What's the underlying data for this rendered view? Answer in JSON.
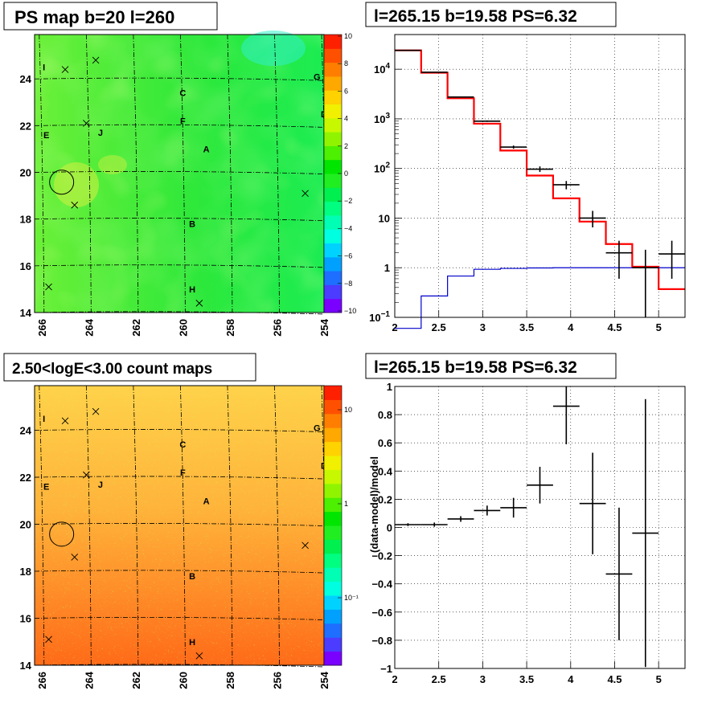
{
  "panels": {
    "ps_map_title": "PS map b=20 l=260",
    "count_map_title": "2.50<logE<3.00 count maps",
    "spectrum_title": "l=265.15 b=19.58 PS=6.32",
    "residual_title": "l=265.15 b=19.58 PS=6.32"
  },
  "map_axes": {
    "x_ticks": [
      "266",
      "264",
      "262",
      "260",
      "258",
      "256",
      "254"
    ],
    "y_ticks": [
      "24",
      "22",
      "20",
      "18",
      "16",
      "14"
    ]
  },
  "sources": [
    {
      "label": "I",
      "l": 265.9,
      "b": 24.5
    },
    {
      "label": "C",
      "l": 260.0,
      "b": 23.4
    },
    {
      "label": "G",
      "l": 254.3,
      "b": 24.1
    },
    {
      "label": "D",
      "l": 254.0,
      "b": 22.5
    },
    {
      "label": "F",
      "l": 260.0,
      "b": 22.2
    },
    {
      "label": "E",
      "l": 265.8,
      "b": 21.6
    },
    {
      "label": "J",
      "l": 263.5,
      "b": 21.7
    },
    {
      "label": "A",
      "l": 259.0,
      "b": 21.0
    },
    {
      "label": "B",
      "l": 259.6,
      "b": 17.8
    },
    {
      "label": "H",
      "l": 259.6,
      "b": 15.0
    }
  ],
  "crosses": [
    {
      "l": 265.0,
      "b": 24.4
    },
    {
      "l": 263.7,
      "b": 24.8
    },
    {
      "l": 264.1,
      "b": 22.1
    },
    {
      "l": 264.6,
      "b": 18.6
    },
    {
      "l": 254.8,
      "b": 19.1
    },
    {
      "l": 265.7,
      "b": 15.1
    },
    {
      "l": 259.3,
      "b": 14.4
    }
  ],
  "ps_circle": {
    "l": 265.15,
    "b": 19.58
  },
  "ps_colorbar": {
    "ticks": [
      "10",
      "8",
      "6",
      "4",
      "2",
      "0",
      "−2",
      "−4",
      "−6",
      "−8",
      "−10"
    ],
    "colors": [
      "#7a00ff",
      "#4b3cff",
      "#1e6eff",
      "#00a0ff",
      "#00d2ff",
      "#00ffe0",
      "#00ffb4",
      "#00ff80",
      "#00f050",
      "#20ee20",
      "#00e600",
      "#4cf000",
      "#90f400",
      "#c8f800",
      "#f0f000",
      "#ffd200",
      "#ffa800",
      "#ff7e00",
      "#ff5000",
      "#ff2000"
    ]
  },
  "count_colorbar": {
    "ticks": [
      "10",
      "1",
      "10⁻¹"
    ],
    "colors": [
      "#7a00ff",
      "#4b3cff",
      "#1e6eff",
      "#00a0ff",
      "#00d2ff",
      "#00ffe0",
      "#00ffb4",
      "#00ff80",
      "#00f050",
      "#20ee20",
      "#00e600",
      "#4cf000",
      "#90f400",
      "#c8f800",
      "#f0f000",
      "#ffd200",
      "#ffa800",
      "#ff7e00",
      "#ff5000",
      "#ff2000"
    ]
  },
  "chart_data": [
    {
      "type": "heatmap",
      "title": "PS map b=20 l=260",
      "xlim": [
        266.3,
        254.0
      ],
      "ylim": [
        14.0,
        25.9
      ],
      "zlim": [
        -10,
        10
      ],
      "colorbar_ticks": [
        10,
        8,
        6,
        4,
        2,
        0,
        -2,
        -4,
        -6,
        -8,
        -10
      ]
    },
    {
      "type": "heatmap",
      "title": "2.50<logE<3.00 count maps",
      "xlim": [
        266.3,
        254.0
      ],
      "ylim": [
        14.0,
        25.9
      ],
      "zscale": "log",
      "colorbar_ticks": [
        "10",
        "1",
        "10^-1"
      ]
    },
    {
      "type": "line",
      "title": "l=265.15 b=19.58 PS=6.32",
      "xlim": [
        2,
        5.3
      ],
      "ylim": [
        0.1,
        50000
      ],
      "yscale": "log",
      "x_ticks": [
        "2",
        "2.5",
        "3",
        "3.5",
        "4",
        "4.5",
        "5"
      ],
      "y_ticks": [
        {
          "v": 0.1,
          "base": "10",
          "exp": "−1"
        },
        {
          "v": 1,
          "base": "1",
          "exp": ""
        },
        {
          "v": 10,
          "base": "10",
          "exp": ""
        },
        {
          "v": 100,
          "base": "10",
          "exp": "2"
        },
        {
          "v": 1000,
          "base": "10",
          "exp": "3"
        },
        {
          "v": 10000,
          "base": "10",
          "exp": "4"
        }
      ],
      "grid": true,
      "series": [
        {
          "color": "#ff0000",
          "style": "step",
          "edges": [
            2.0,
            2.3,
            2.6,
            2.9,
            3.2,
            3.5,
            3.8,
            4.1,
            4.4,
            4.7,
            5.0,
            5.3
          ],
          "values": [
            24000,
            8500,
            2600,
            800,
            230,
            72,
            25,
            8.5,
            3.0,
            1.05,
            0.37
          ]
        },
        {
          "color": "#0000cc",
          "style": "step",
          "edges": [
            2.0,
            2.3,
            2.6,
            2.9,
            3.2,
            3.5,
            3.8,
            4.1,
            4.4,
            4.7,
            5.0,
            5.3
          ],
          "values": [
            0.04,
            0.27,
            0.68,
            0.93,
            0.97,
            0.99,
            1.0,
            1.0,
            1.0,
            1.0,
            1.0
          ]
        },
        {
          "color": "#000000",
          "style": "errorbar",
          "points": [
            {
              "x": 2.15,
              "xerr": 0.15,
              "y": 24000,
              "ylo": 24000,
              "yhi": 24000
            },
            {
              "x": 2.45,
              "xerr": 0.15,
              "y": 8700,
              "ylo": 8700,
              "yhi": 8700
            },
            {
              "x": 2.75,
              "xerr": 0.15,
              "y": 2750,
              "ylo": 2700,
              "yhi": 2800
            },
            {
              "x": 3.05,
              "xerr": 0.15,
              "y": 900,
              "ylo": 870,
              "yhi": 930
            },
            {
              "x": 3.35,
              "xerr": 0.15,
              "y": 270,
              "ylo": 250,
              "yhi": 290
            },
            {
              "x": 3.65,
              "xerr": 0.15,
              "y": 97,
              "ylo": 85,
              "yhi": 110
            },
            {
              "x": 3.95,
              "xerr": 0.15,
              "y": 47,
              "ylo": 38,
              "yhi": 56
            },
            {
              "x": 4.25,
              "xerr": 0.15,
              "y": 10,
              "ylo": 6.5,
              "yhi": 14
            },
            {
              "x": 4.55,
              "xerr": 0.15,
              "y": 2.0,
              "ylo": 0.6,
              "yhi": 3.5
            },
            {
              "x": 4.85,
              "xerr": 0.15,
              "y": 1.0,
              "ylo": 0.1,
              "yhi": 2.3
            },
            {
              "x": 5.15,
              "xerr": 0.15,
              "y": 1.9,
              "ylo": 0.6,
              "yhi": 3.5
            }
          ]
        }
      ]
    },
    {
      "type": "scatter",
      "title": "l=265.15 b=19.58 PS=6.32",
      "xlim": [
        2,
        5.3
      ],
      "ylim": [
        -1,
        1
      ],
      "ylabel": "(data-model)/model",
      "x_ticks": [
        "2",
        "2.5",
        "3",
        "3.5",
        "4",
        "4.5",
        "5"
      ],
      "y_ticks": [
        "1",
        "0.8",
        "0.6",
        "0.4",
        "0.2",
        "0",
        "−0.2",
        "−0.4",
        "−0.6",
        "−0.8",
        "−1"
      ],
      "grid": true,
      "points": [
        {
          "x": 2.15,
          "xerr": 0.15,
          "y": 0.02,
          "yerr": 0.01
        },
        {
          "x": 2.45,
          "xerr": 0.15,
          "y": 0.02,
          "yerr": 0.015
        },
        {
          "x": 2.75,
          "xerr": 0.15,
          "y": 0.06,
          "yerr": 0.02
        },
        {
          "x": 3.05,
          "xerr": 0.15,
          "y": 0.12,
          "yerr": 0.035
        },
        {
          "x": 3.35,
          "xerr": 0.15,
          "y": 0.14,
          "yerr": 0.07
        },
        {
          "x": 3.65,
          "xerr": 0.15,
          "y": 0.3,
          "yerr": 0.13
        },
        {
          "x": 3.95,
          "xerr": 0.15,
          "y": 0.86,
          "yerr": 0.27
        },
        {
          "x": 4.25,
          "xerr": 0.15,
          "y": 0.17,
          "yerr": 0.36
        },
        {
          "x": 4.55,
          "xerr": 0.15,
          "y": -0.33,
          "yerr": 0.47
        },
        {
          "x": 4.85,
          "xerr": 0.15,
          "y": -0.04,
          "yerr": 0.95
        }
      ]
    }
  ]
}
